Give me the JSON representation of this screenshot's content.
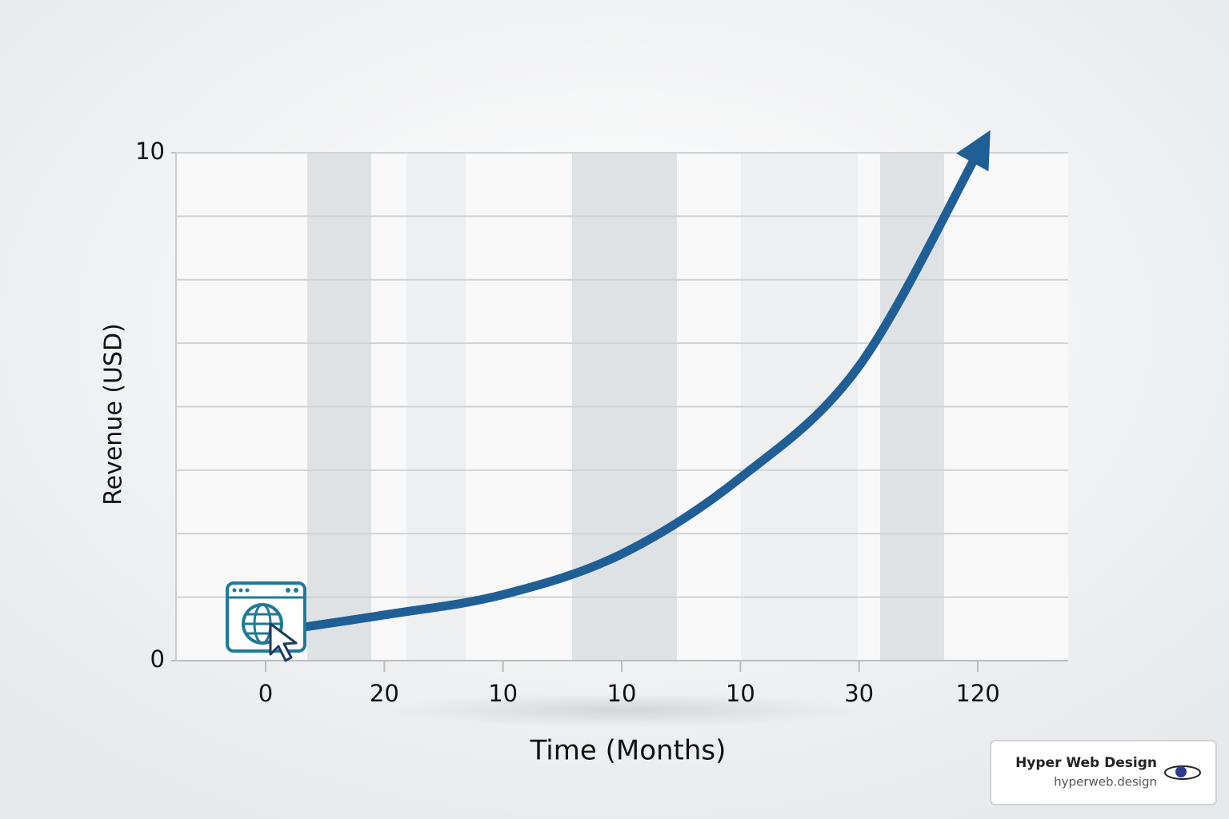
{
  "chart_data": {
    "type": "line",
    "x_label": "Time (Months)",
    "y_label": "Revenue (USD)",
    "categories": [
      "0",
      "20",
      "10",
      "10",
      "10",
      "30",
      "120"
    ],
    "series": [
      {
        "color": "#1f5f96",
        "values": [
          0.55,
          0.9,
          1.3,
          2.1,
          3.6,
          5.8,
          10
        ]
      }
    ],
    "ylim": [
      0,
      10
    ],
    "yticks": [
      0,
      10
    ],
    "ygrid": [
      0,
      1.25,
      2.5,
      3.75,
      5,
      6.25,
      7.5,
      8.75,
      10
    ],
    "grid": true
  },
  "watermark": {
    "title": "Hyper Web Design",
    "url": "hyperweb.design"
  }
}
